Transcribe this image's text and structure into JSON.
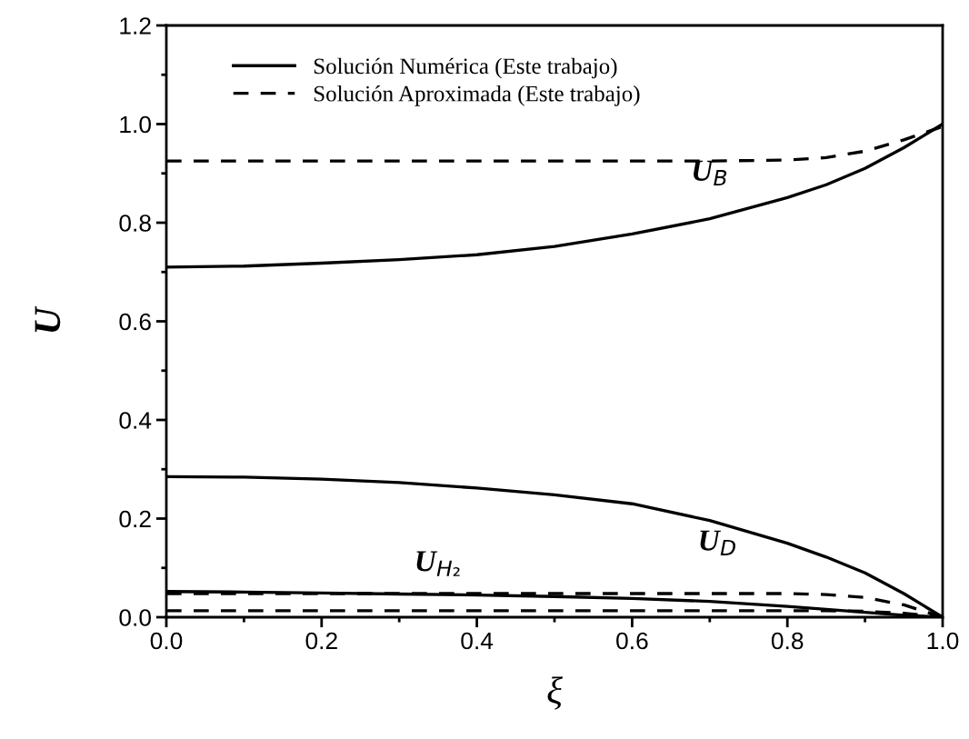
{
  "chart_data": {
    "type": "line",
    "xlabel": "ξ",
    "ylabel": "U",
    "x": [
      0,
      0.1,
      0.2,
      0.3,
      0.4,
      0.5,
      0.6,
      0.7,
      0.8,
      0.85,
      0.9,
      0.95,
      1.0
    ],
    "series": [
      {
        "name": "Solución Numérica (Este trabajo)",
        "color": "#000000",
        "line_style": "solid",
        "values": [
          0.71,
          0.712,
          0.718,
          0.725,
          0.735,
          0.752,
          0.777,
          0.808,
          0.851,
          0.877,
          0.91,
          0.952,
          1.0
        ]
      },
      {
        "name": "Solución Aproximada (Este trabajo)",
        "color": "#000000",
        "line_style": "dashed",
        "values": [
          0.925,
          0.925,
          0.925,
          0.925,
          0.925,
          0.925,
          0.925,
          0.925,
          0.927,
          0.932,
          0.945,
          0.968,
          0.995
        ]
      },
      {
        "color": "#000000",
        "line_style": "solid",
        "values": [
          0.285,
          0.284,
          0.28,
          0.273,
          0.262,
          0.248,
          0.23,
          0.196,
          0.15,
          0.122,
          0.09,
          0.048,
          0.0
        ]
      },
      {
        "color": "#000000",
        "line_style": "solid",
        "values": [
          0.052,
          0.051,
          0.049,
          0.047,
          0.045,
          0.042,
          0.038,
          0.032,
          0.022,
          0.016,
          0.01,
          0.004,
          0.0
        ]
      },
      {
        "color": "#000000",
        "line_style": "dashed",
        "values": [
          0.048,
          0.048,
          0.048,
          0.048,
          0.048,
          0.048,
          0.048,
          0.048,
          0.048,
          0.046,
          0.04,
          0.025,
          0.0
        ]
      },
      {
        "color": "#000000",
        "line_style": "dashed",
        "values": [
          0.013,
          0.013,
          0.013,
          0.013,
          0.013,
          0.013,
          0.013,
          0.013,
          0.013,
          0.013,
          0.012,
          0.008,
          0.0
        ]
      }
    ],
    "annotations": [
      "U$_{B}$",
      "U$_{D}$",
      "U$_{H₂}$"
    ],
    "xlim": [
      0,
      1.0
    ],
    "xticks": [
      {
        "value": 0,
        "label": "0.0"
      },
      0.2,
      0.4,
      0.6,
      0.8,
      {
        "value": 1,
        "label": "1.0"
      }
    ],
    "ylim": [
      0,
      1.2
    ],
    "yticks": [
      {
        "value": 0,
        "label": "0.0"
      },
      0.2,
      0.4,
      0.6,
      0.8,
      {
        "value": 1,
        "label": "1.0"
      },
      1.2
    ],
    "grid": false,
    "legend": "top left",
    "marker": "none"
  }
}
